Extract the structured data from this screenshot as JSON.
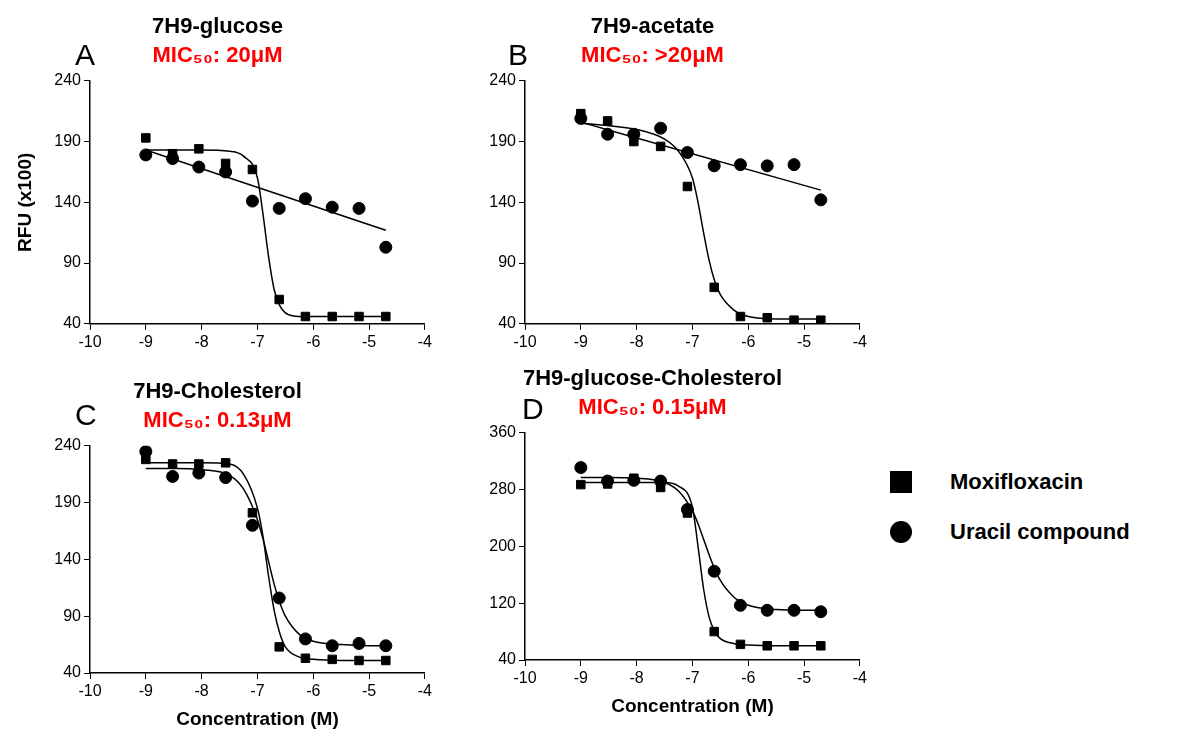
{
  "chart_data": [
    {
      "type": "scatter",
      "annotation": "A",
      "title": "7H9-glucose",
      "subtitle": "MIC₅₀: 20μM",
      "ylabel": "RFU (x100)",
      "x": [
        -9,
        -8.52,
        -8.05,
        -7.57,
        -7.09,
        -6.61,
        -6.14,
        -5.66,
        -5.18,
        -4.7
      ],
      "xlim": [
        -10,
        -4
      ],
      "xticks": [
        -10,
        -9,
        -8,
        -7,
        -6,
        -5,
        -4
      ],
      "ylim": [
        40,
        240
      ],
      "yticks": [
        40,
        90,
        140,
        190,
        240
      ],
      "grid": false,
      "series": [
        {
          "name": "Moxifloxacin",
          "marker": "square",
          "color": "#000000",
          "values": [
            193,
            180,
            184,
            172,
            167,
            60,
            46,
            46,
            46,
            46
          ],
          "fit": {
            "x": [
              -9,
              -8.5,
              -8,
              -7.5,
              -7.25,
              -7,
              -6.9,
              -6.8,
              -6.7,
              -6.6,
              -6.5,
              -6.25,
              -6,
              -5.5,
              -5,
              -4.7
            ],
            "values": [
              183,
              183,
              183,
              182,
              178,
              160,
              130,
              95,
              68,
              55,
              49,
              46,
              46,
              46,
              46,
              46
            ]
          }
        },
        {
          "name": "Uracil compound",
          "marker": "circle",
          "color": "#000000",
          "values": [
            179,
            176,
            169,
            165,
            141,
            135,
            143,
            136,
            135,
            103
          ],
          "fit": {
            "x": [
              -9,
              -4.7
            ],
            "values": [
              183,
              117
            ]
          }
        }
      ]
    },
    {
      "type": "scatter",
      "annotation": "B",
      "title": "7H9-acetate",
      "subtitle": "MIC₅₀: >20μM",
      "x": [
        -9,
        -8.52,
        -8.05,
        -7.57,
        -7.09,
        -6.61,
        -6.14,
        -5.66,
        -5.18,
        -4.7
      ],
      "xlim": [
        -10,
        -4
      ],
      "xticks": [
        -10,
        -9,
        -8,
        -7,
        -6,
        -5,
        -4
      ],
      "ylim": [
        40,
        240
      ],
      "yticks": [
        40,
        90,
        140,
        190,
        240
      ],
      "grid": false,
      "series": [
        {
          "name": "Moxifloxacin",
          "marker": "square",
          "color": "#000000",
          "values": [
            213,
            207,
            190,
            186,
            153,
            70,
            46,
            45,
            43,
            43
          ],
          "fit": {
            "x": [
              -9,
              -8.5,
              -8,
              -7.5,
              -7.25,
              -7,
              -6.9,
              -6.8,
              -6.7,
              -6.6,
              -6.5,
              -6.25,
              -6,
              -5.5,
              -5,
              -4.7
            ],
            "values": [
              205,
              203,
              200,
              192,
              182,
              160,
              140,
              115,
              92,
              75,
              64,
              51,
              46,
              44,
              44,
              44
            ]
          }
        },
        {
          "name": "Uracil compound",
          "marker": "circle",
          "color": "#000000",
          "values": [
            209,
            196,
            196,
            201,
            181,
            170,
            171,
            170,
            171,
            142
          ],
          "fit": {
            "x": [
              -9,
              -4.7
            ],
            "values": [
              206,
              150
            ]
          }
        }
      ]
    },
    {
      "type": "scatter",
      "annotation": "C",
      "title": "7H9-Cholesterol",
      "subtitle": "MIC₅₀: 0.13μM",
      "xlabel": "Concentration (M)",
      "x": [
        -9,
        -8.52,
        -8.05,
        -7.57,
        -7.09,
        -6.61,
        -6.14,
        -5.66,
        -5.18,
        -4.7
      ],
      "xlim": [
        -10,
        -4
      ],
      "xticks": [
        -10,
        -9,
        -8,
        -7,
        -6,
        -5,
        -4
      ],
      "ylim": [
        40,
        240
      ],
      "yticks": [
        40,
        90,
        140,
        190,
        240
      ],
      "grid": false,
      "series": [
        {
          "name": "Moxifloxacin",
          "marker": "square",
          "color": "#000000",
          "values": [
            228,
            224,
            224,
            225,
            181,
            63,
            53,
            52,
            51,
            51
          ],
          "fit": {
            "x": [
              -9,
              -8.5,
              -8,
              -7.5,
              -7.25,
              -7,
              -6.9,
              -6.8,
              -6.7,
              -6.6,
              -6.5,
              -6.25,
              -6,
              -5.5,
              -5,
              -4.7
            ],
            "values": [
              225,
              225,
              225,
              224,
              215,
              185,
              160,
              125,
              95,
              75,
              63,
              54,
              52,
              51,
              51,
              51
            ]
          }
        },
        {
          "name": "Uracil compound",
          "marker": "circle",
          "color": "#000000",
          "values": [
            235,
            213,
            216,
            212,
            170,
            106,
            70,
            64,
            66,
            64
          ],
          "fit": {
            "x": [
              -9,
              -8.5,
              -8,
              -7.5,
              -7.25,
              -7,
              -6.9,
              -6.8,
              -6.7,
              -6.6,
              -6.5,
              -6.25,
              -6,
              -5.5,
              -5,
              -4.7
            ],
            "values": [
              220,
              220,
              219,
              214,
              202,
              175,
              158,
              138,
              118,
              102,
              90,
              74,
              68,
              65,
              64,
              64
            ]
          }
        }
      ]
    },
    {
      "type": "scatter",
      "annotation": "D",
      "title": "7H9-glucose-Cholesterol",
      "subtitle": "MIC₅₀: 0.15μM",
      "xlabel": "Concentration (M)",
      "legend": "right",
      "x": [
        -9,
        -8.52,
        -8.05,
        -7.57,
        -7.09,
        -6.61,
        -6.14,
        -5.66,
        -5.18,
        -4.7
      ],
      "xlim": [
        -10,
        -4
      ],
      "xticks": [
        -10,
        -9,
        -8,
        -7,
        -6,
        -5,
        -4
      ],
      "ylim": [
        40,
        360
      ],
      "yticks": [
        40,
        120,
        200,
        280,
        360
      ],
      "grid": false,
      "series": [
        {
          "name": "Moxifloxacin",
          "marker": "square",
          "color": "#000000",
          "values": [
            287,
            288,
            296,
            283,
            247,
            80,
            62,
            60,
            60,
            60
          ],
          "fit": {
            "x": [
              -9,
              -8.5,
              -8,
              -7.5,
              -7.25,
              -7,
              -6.9,
              -6.8,
              -6.7,
              -6.6,
              -6.5,
              -6.25,
              -6,
              -5.5,
              -5,
              -4.7
            ],
            "values": [
              290,
              290,
              290,
              290,
              285,
              255,
              200,
              140,
              100,
              80,
              70,
              63,
              61,
              60,
              60,
              60
            ]
          }
        },
        {
          "name": "Uracil compound",
          "marker": "circle",
          "color": "#000000",
          "values": [
            311,
            292,
            293,
            292,
            252,
            165,
            117,
            110,
            110,
            108
          ],
          "fit": {
            "x": [
              -9,
              -8.5,
              -8,
              -7.5,
              -7.25,
              -7,
              -6.9,
              -6.8,
              -6.7,
              -6.6,
              -6.5,
              -6.25,
              -6,
              -5.5,
              -5,
              -4.7
            ],
            "values": [
              297,
              297,
              296,
              290,
              278,
              250,
              232,
              210,
              188,
              168,
              152,
              128,
              117,
              111,
              110,
              110
            ]
          }
        }
      ]
    }
  ]
}
